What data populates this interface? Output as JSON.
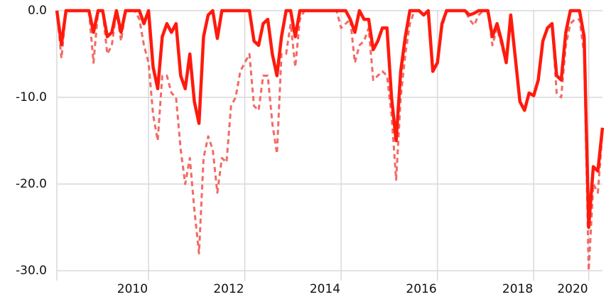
{
  "chart_data": {
    "type": "line",
    "categories": [
      null,
      null,
      null,
      null,
      null,
      null,
      null,
      null,
      null,
      null,
      null,
      null,
      null,
      null,
      null,
      null,
      null,
      null,
      null,
      null,
      "2010",
      null,
      null,
      null,
      null,
      null,
      null,
      null,
      null,
      null,
      null,
      null,
      null,
      null,
      null,
      null,
      null,
      null,
      null,
      null,
      null,
      "2012",
      null,
      null,
      null,
      null,
      null,
      null,
      null,
      null,
      null,
      null,
      null,
      null,
      null,
      null,
      null,
      null,
      null,
      null,
      null,
      null,
      "2014",
      null,
      null,
      null,
      null,
      null,
      null,
      null,
      null,
      null,
      null,
      null,
      null,
      null,
      null,
      null,
      null,
      null,
      null,
      null,
      null,
      "2016",
      null,
      null,
      null,
      null,
      null,
      null,
      null,
      null,
      null,
      null,
      null,
      null,
      null,
      null,
      null,
      null,
      null,
      null,
      null,
      null,
      "2018",
      null,
      null,
      null,
      null,
      null,
      null,
      null,
      null,
      null,
      null,
      null,
      "2020",
      null,
      null,
      null
    ],
    "series": [
      {
        "color": "#f26a64",
        "dash": true,
        "values": [
          0,
          -5.5,
          0,
          0,
          0,
          0,
          0,
          0,
          -6,
          0,
          0,
          -5,
          -4,
          0,
          -3.5,
          0,
          0,
          0,
          -1,
          -4,
          -6,
          -12,
          -15,
          -7.5,
          -7.5,
          -9.5,
          -10,
          -16,
          -20,
          -17,
          -23,
          -28,
          -17,
          -14.5,
          -16,
          -21,
          -17,
          -17.5,
          -11,
          -10,
          -7,
          -6,
          -5,
          -11,
          -11.5,
          -7.5,
          -7.5,
          -13,
          -16.5,
          -5,
          -5,
          -1.5,
          -6.5,
          -1,
          0,
          0,
          0,
          0,
          0,
          0,
          0,
          0,
          -2,
          -1.5,
          -1,
          -6,
          -4,
          -3.5,
          -2,
          -8,
          -7.5,
          -7,
          -7.5,
          -12,
          -19.5,
          -10,
          -5,
          -1.5,
          0,
          0,
          -0.5,
          0,
          -7,
          -6,
          -2,
          0,
          0,
          0,
          0,
          0,
          -1,
          -1.7,
          -0.5,
          0,
          0,
          -4,
          -2,
          -4,
          -6,
          -0.5,
          -5.5,
          -10.5,
          -11.5,
          -9.5,
          -9.8,
          -8,
          -3.5,
          -2,
          -1.5,
          -9.5,
          -10,
          -4,
          -1.5,
          -1,
          -1,
          -5,
          -30,
          -20,
          -21,
          -14
        ]
      },
      {
        "color": "#ff1a0d",
        "dash": false,
        "values": [
          0,
          -3.9,
          0,
          0,
          0,
          0,
          0,
          0,
          -2.5,
          0,
          0,
          -3,
          -2.5,
          0,
          -2.5,
          0,
          0,
          0,
          0,
          -1.5,
          0,
          -6.5,
          -9,
          -3,
          -1.5,
          -2.5,
          -1.5,
          -7.5,
          -9,
          -5,
          -10.5,
          -13,
          -3,
          -0.5,
          0,
          -3.2,
          0,
          0,
          0,
          0,
          0,
          0,
          0,
          -3.5,
          -4,
          -1.5,
          -1,
          -5,
          -7.5,
          -3,
          0,
          0,
          -3,
          0,
          0,
          0,
          0,
          0,
          0,
          0,
          0,
          0,
          0,
          0,
          -1,
          -2.5,
          0,
          -1,
          -1,
          -4.5,
          -3.5,
          -2,
          -2,
          -10,
          -15,
          -7,
          -3,
          0,
          0,
          0,
          -0.5,
          0,
          -7,
          -6,
          -1.5,
          0,
          0,
          0,
          0,
          0,
          -0.5,
          -0.3,
          0,
          0,
          0,
          -3,
          -1.5,
          -3.5,
          -6,
          -0.5,
          -5.5,
          -10.5,
          -11.5,
          -9.5,
          -9.8,
          -8,
          -3.5,
          -2,
          -1.5,
          -7.5,
          -8,
          -2.5,
          0,
          0,
          0,
          -3,
          -25,
          -18,
          -18.5,
          -13.5
        ]
      }
    ],
    "ylim": [
      -30,
      0
    ],
    "yticks": [
      {
        "value": 0,
        "label": "0.0"
      },
      {
        "value": -10,
        "label": "-10.0"
      },
      {
        "value": -20,
        "label": "-20.0"
      },
      {
        "value": -30,
        "label": "-30.0"
      }
    ],
    "grid": true
  }
}
